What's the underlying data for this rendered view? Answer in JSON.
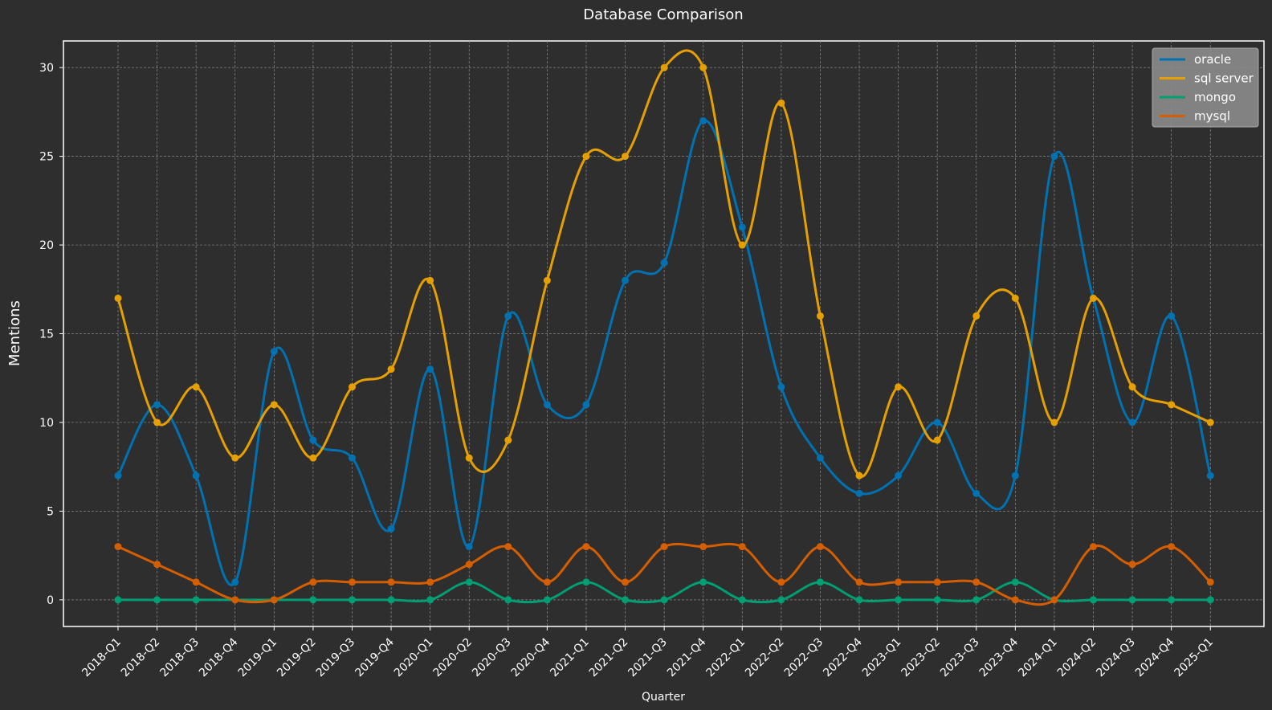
{
  "chart_data": {
    "type": "line",
    "title": "Database Comparison",
    "xlabel": "Quarter",
    "ylabel": "Mentions",
    "ylim": [
      -1.5,
      31.5
    ],
    "yticks": [
      0,
      5,
      10,
      15,
      20,
      25,
      30
    ],
    "grid": true,
    "legend_position": "top-right",
    "categories": [
      "2018-Q1",
      "2018-Q2",
      "2018-Q3",
      "2018-Q4",
      "2019-Q1",
      "2019-Q2",
      "2019-Q3",
      "2019-Q4",
      "2020-Q1",
      "2020-Q2",
      "2020-Q3",
      "2020-Q4",
      "2021-Q1",
      "2021-Q2",
      "2021-Q3",
      "2021-Q4",
      "2022-Q1",
      "2022-Q2",
      "2022-Q3",
      "2022-Q4",
      "2023-Q1",
      "2023-Q2",
      "2023-Q3",
      "2023-Q4",
      "2024-Q1",
      "2024-Q2",
      "2024-Q3",
      "2024-Q4",
      "2025-Q1"
    ],
    "series": [
      {
        "name": "oracle",
        "color": "#0072b2",
        "values": [
          7,
          11,
          7,
          1,
          14,
          9,
          8,
          4,
          13,
          3,
          16,
          11,
          11,
          18,
          19,
          27,
          21,
          12,
          8,
          6,
          7,
          10,
          6,
          7,
          25,
          17,
          10,
          16,
          7
        ]
      },
      {
        "name": "sql server",
        "color": "#e69f00",
        "values": [
          17,
          10,
          12,
          8,
          11,
          8,
          12,
          13,
          18,
          8,
          9,
          18,
          25,
          25,
          30,
          30,
          20,
          28,
          16,
          7,
          12,
          9,
          16,
          17,
          10,
          17,
          12,
          11,
          10
        ]
      },
      {
        "name": "mongo",
        "color": "#009e73",
        "values": [
          0,
          0,
          0,
          0,
          0,
          0,
          0,
          0,
          0,
          1,
          0,
          0,
          1,
          0,
          0,
          1,
          0,
          0,
          1,
          0,
          0,
          0,
          0,
          1,
          0,
          0,
          0,
          0,
          0
        ]
      },
      {
        "name": "mysql",
        "color": "#d55e00",
        "values": [
          3,
          2,
          1,
          0,
          0,
          1,
          1,
          1,
          1,
          2,
          3,
          1,
          3,
          1,
          3,
          3,
          3,
          1,
          3,
          1,
          1,
          1,
          1,
          0,
          0,
          3,
          2,
          3,
          1
        ]
      }
    ]
  }
}
